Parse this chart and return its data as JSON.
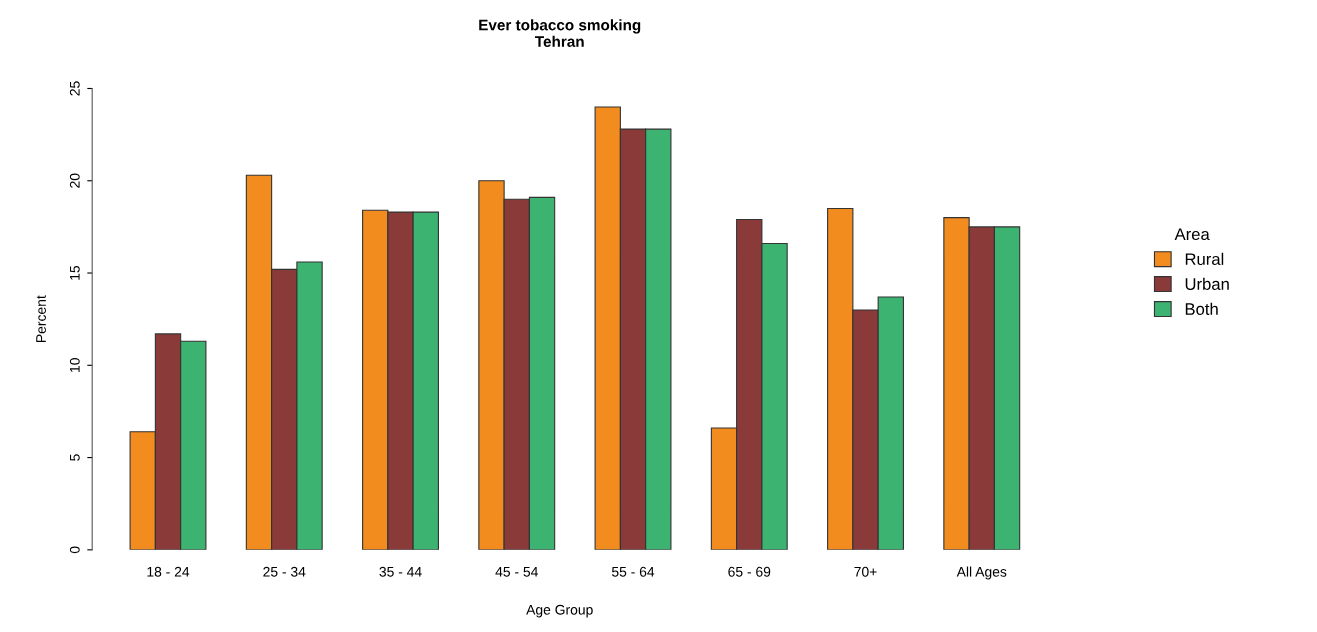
{
  "chart_data": {
    "type": "bar",
    "title": "Ever tobacco smoking\nTehran",
    "xlabel": "Age Group",
    "ylabel": "Percent",
    "legend_title": "Area",
    "categories": [
      "18 - 24",
      "25 - 34",
      "35 - 44",
      "45 - 54",
      "55 - 64",
      "65 - 69",
      "70+",
      "All Ages"
    ],
    "series": [
      {
        "name": "Rural",
        "color": "#f28c1e",
        "values": [
          6.4,
          20.3,
          18.4,
          20.0,
          24.0,
          6.6,
          18.5,
          18.0
        ]
      },
      {
        "name": "Urban",
        "color": "#8b3a3a",
        "values": [
          11.7,
          15.2,
          18.3,
          19.0,
          22.8,
          17.9,
          13.0,
          17.5
        ]
      },
      {
        "name": "Both",
        "color": "#3cb371",
        "values": [
          11.3,
          15.6,
          18.3,
          19.1,
          22.8,
          16.6,
          13.7,
          17.5
        ]
      }
    ],
    "ylim": [
      0,
      25
    ],
    "yticks": [
      0,
      5,
      10,
      15,
      20,
      25
    ],
    "grid": false,
    "legend": "right"
  }
}
